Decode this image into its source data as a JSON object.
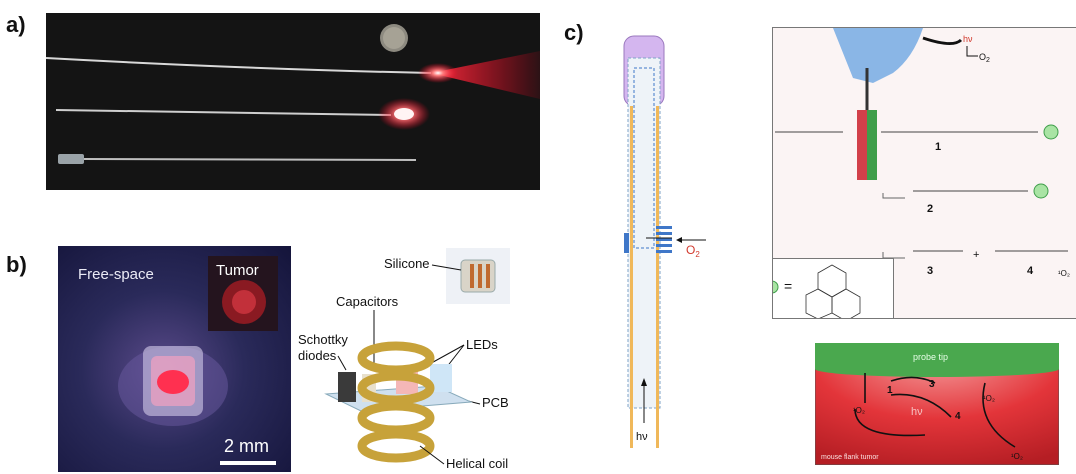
{
  "panels": {
    "a": "a)",
    "b": "b)",
    "c": "c)"
  },
  "panel_b": {
    "photo_label": "Free-space",
    "inset_label": "Tumor",
    "scale_bar": "2 mm",
    "labels": {
      "silicone": "Silicone",
      "capacitors": "Capacitors",
      "schottky_line1": "Schottky",
      "schottky_line2": "diodes",
      "leds": "LEDs",
      "pcb": "PCB",
      "helical_coil": "Helical coil"
    }
  },
  "panel_c": {
    "o2": "O",
    "o2_sub": "2",
    "hv": "hν",
    "equals": "=",
    "compound_numbers": [
      "1",
      "2",
      "3",
      "4"
    ],
    "probe_tip": "probe tip",
    "tumor_label": "mouse flank tumor",
    "singlet_o2": "¹O₂",
    "diagram_hv": "hν",
    "diagram_nums": [
      "1",
      "3",
      "4"
    ]
  },
  "colors": {
    "laser_red": "#ff2030",
    "probe_green": "#3f9e4a",
    "fiber_purple": "#c9a6e8",
    "arrow_red": "#d23a2e",
    "coil_gold": "#c7a23a"
  }
}
